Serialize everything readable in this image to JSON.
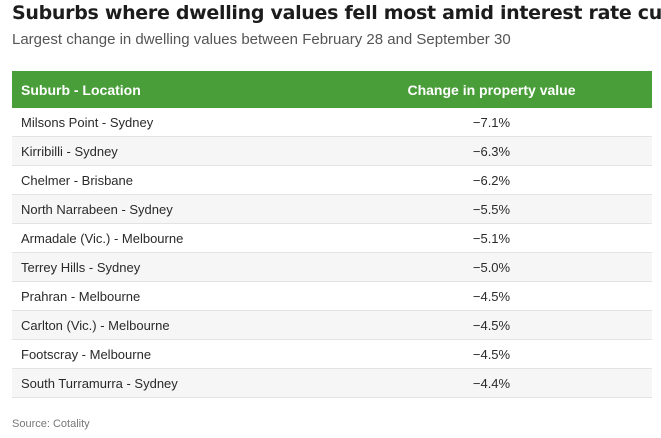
{
  "header": {
    "title": "Suburbs where dwelling values fell most amid interest rate cuts",
    "subtitle": "Largest change in dwelling values between February 28 and September 30"
  },
  "colors": {
    "header_bg": "#4a9e3a",
    "header_text": "#ffffff",
    "stripe": "#f6f6f6"
  },
  "table": {
    "columns": [
      "Suburb - Location",
      "Change in property value"
    ],
    "rows": [
      {
        "suburb": "Milsons Point - Sydney",
        "change": "−7.1%"
      },
      {
        "suburb": "Kirribilli - Sydney",
        "change": "−6.3%"
      },
      {
        "suburb": "Chelmer - Brisbane",
        "change": "−6.2%"
      },
      {
        "suburb": "North Narrabeen - Sydney",
        "change": "−5.5%"
      },
      {
        "suburb": "Armadale (Vic.) - Melbourne",
        "change": "−5.1%"
      },
      {
        "suburb": "Terrey Hills - Sydney",
        "change": "−5.0%"
      },
      {
        "suburb": "Prahran - Melbourne",
        "change": "−4.5%"
      },
      {
        "suburb": "Carlton (Vic.) - Melbourne",
        "change": "−4.5%"
      },
      {
        "suburb": "Footscray - Melbourne",
        "change": "−4.5%"
      },
      {
        "suburb": "South Turramurra - Sydney",
        "change": "−4.4%"
      }
    ]
  },
  "footer": {
    "source": "Source: Cotality"
  }
}
